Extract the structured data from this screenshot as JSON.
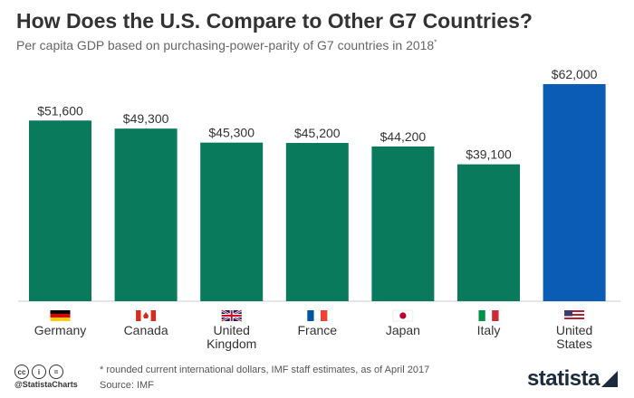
{
  "header": {
    "title": "How Does the U.S. Compare to Other G7 Countries?",
    "subtitle": "Per capita GDP based on purchasing-power-parity of G7 countries in 2018",
    "subtitle_sup": "*"
  },
  "colors": {
    "bar_default": "#0a7a5c",
    "bar_highlight": "#0a5cb4",
    "axis_line": "#cccccc",
    "label_text": "#333333"
  },
  "chart_data": {
    "type": "bar",
    "categories": [
      "Germany",
      "Canada",
      "United Kingdom",
      "France",
      "Japan",
      "Italy",
      "United States"
    ],
    "category_lines": [
      [
        "Germany"
      ],
      [
        "Canada"
      ],
      [
        "United",
        "Kingdom"
      ],
      [
        "France"
      ],
      [
        "Japan"
      ],
      [
        "Italy"
      ],
      [
        "United",
        "States"
      ]
    ],
    "values": [
      51600,
      49300,
      45300,
      45200,
      44200,
      39100,
      62000
    ],
    "value_labels": [
      "$51,600",
      "$49,300",
      "$45,300",
      "$45,200",
      "$44,200",
      "$39,100",
      "$62,000"
    ],
    "highlight": [
      "United States"
    ],
    "ylim": [
      0,
      62000
    ],
    "grid": false,
    "flag_icons": [
      "germany-flag-icon",
      "canada-flag-icon",
      "uk-flag-icon",
      "france-flag-icon",
      "japan-flag-icon",
      "italy-flag-icon",
      "usa-flag-icon"
    ]
  },
  "footer": {
    "license_icons": [
      "cc-icon",
      "by-icon",
      "nd-icon"
    ],
    "handle": "@StatistaCharts",
    "note": "* rounded current international dollars, IMF staff estimates, as of April 2017",
    "source": "Source: IMF",
    "logo": "statista"
  }
}
